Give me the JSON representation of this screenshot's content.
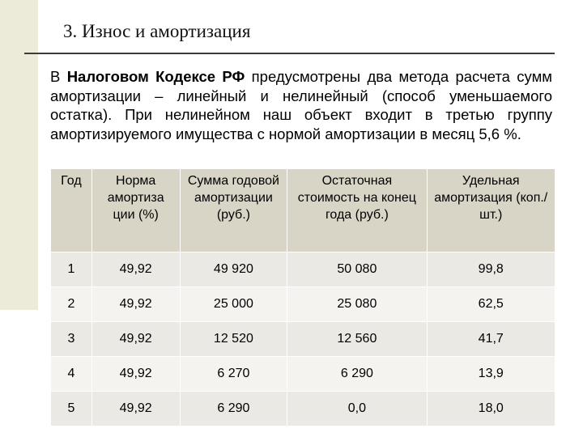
{
  "slide": {
    "title": "3. Износ и амортизация",
    "paragraph": {
      "part1": "В ",
      "bold": "Налоговом Кодексе РФ",
      "part2": " предусмотрены два метода расчета сумм амортизации – линейный и нелинейный (способ уменьшаемого остатка). При нелинейном наш объект входит в третью группу амортизируемого имущества с нормой амортизации в месяц 5,6 %."
    }
  },
  "table": {
    "headers": [
      "Год",
      "Норма амортиза ции (%)",
      "Сумма годовой амортизации (руб.)",
      "Остаточная стоимость на конец года (руб.)",
      "Удельная амортизация (коп./шт.)"
    ],
    "rows": [
      [
        "1",
        "49,92",
        "49 920",
        "50 080",
        "99,8"
      ],
      [
        "2",
        "49,92",
        "25 000",
        "25 080",
        "62,5"
      ],
      [
        "3",
        "49,92",
        "12 520",
        "12 560",
        "41,7"
      ],
      [
        "4",
        "49,92",
        "6 270",
        "6 290",
        "13,9"
      ],
      [
        "5",
        "49,92",
        "6 290",
        "0,0",
        "18,0"
      ]
    ]
  },
  "colors": {
    "left_band": "#ecebd9",
    "header_bg": "#d8d5c7",
    "row_odd": "#eae9e4",
    "row_even": "#f4f3ef",
    "rule": "#3b3b3b"
  }
}
